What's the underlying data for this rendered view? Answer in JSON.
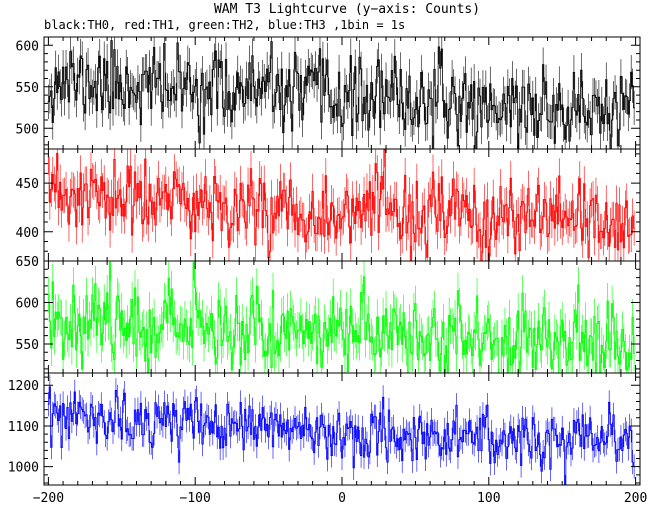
{
  "title": "WAM T3 Lightcurve (y−axis: Counts)",
  "subtitle": "black:TH0, red:TH1, green:TH2, blue:TH3 ,1bin = 1s",
  "chart_data": {
    "type": "line",
    "title": "WAM T3 Lightcurve (y−axis: Counts)",
    "subtitle": "black:TH0, red:TH1, green:TH2, blue:TH3 ,1bin = 1s",
    "xlabel": "",
    "ylabel": "",
    "xlim": [
      -203,
      203
    ],
    "x_ticks": [
      -200,
      -100,
      0,
      100,
      200
    ],
    "x_tick_labels": [
      "−200",
      "−100",
      "0",
      "100",
      "200"
    ],
    "grid": false,
    "legend": "none",
    "bin_seconds": 1,
    "x": {
      "start": -200,
      "end": 199,
      "step": 1
    },
    "panels": [
      {
        "name": "TH0",
        "color": "#000000",
        "ylim": [
          475,
          610
        ],
        "y_ticks": [
          500,
          550,
          600
        ],
        "trend": {
          "start": 558,
          "end": 518
        },
        "noise_sigma": 23,
        "seed": 11
      },
      {
        "name": "TH1",
        "color": "#ff0000",
        "ylim": [
          370,
          485
        ],
        "y_ticks": [
          400,
          450
        ],
        "trend": {
          "start": 437,
          "end": 405
        },
        "noise_sigma": 20,
        "seed": 23
      },
      {
        "name": "TH2",
        "color": "#00ff00",
        "ylim": [
          515,
          650
        ],
        "y_ticks": [
          550,
          600,
          650
        ],
        "trend": {
          "start": 582,
          "end": 548
        },
        "noise_sigma": 24,
        "seed": 37
      },
      {
        "name": "TH3",
        "color": "#0000ff",
        "ylim": [
          955,
          1230
        ],
        "y_ticks": [
          1000,
          1100,
          1200
        ],
        "trend": {
          "start": 1120,
          "end": 1055
        },
        "noise_sigma": 33,
        "seed": 53
      }
    ]
  }
}
